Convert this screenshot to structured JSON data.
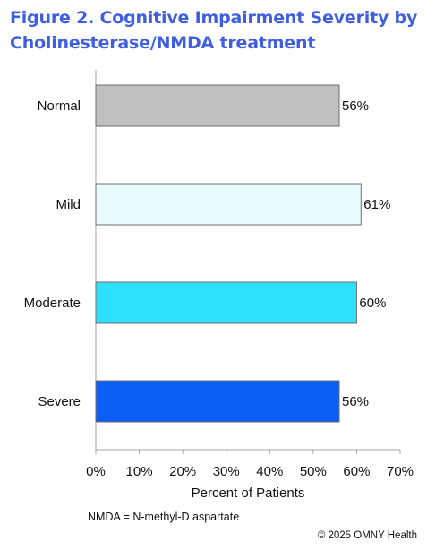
{
  "figure": {
    "title_line1": "Figure 2. Cognitive Impairment Severity by",
    "title_line2": "Cholinesterase/NMDA treatment",
    "footnote": "NMDA = N-methyl-D aspartate",
    "credit": "© 2025 OMNY Health"
  },
  "chart_data": {
    "type": "bar",
    "orientation": "horizontal",
    "categories": [
      "Normal",
      "Mild",
      "Moderate",
      "Severe"
    ],
    "values": [
      56,
      61,
      60,
      56
    ],
    "data_labels": [
      "56%",
      "61%",
      "60%",
      "56%"
    ],
    "colors": [
      "#bfbfbf",
      "#e8fbfe",
      "#2ee0fb",
      "#0a5ef5"
    ],
    "xlabel": "Percent of Patients",
    "ylabel": "",
    "xlim": [
      0,
      70
    ],
    "xticks": [
      0,
      10,
      20,
      30,
      40,
      50,
      60,
      70
    ],
    "xtick_labels": [
      "0%",
      "10%",
      "20%",
      "30%",
      "40%",
      "50%",
      "60%",
      "70%"
    ],
    "grid": false,
    "legend": "none"
  }
}
